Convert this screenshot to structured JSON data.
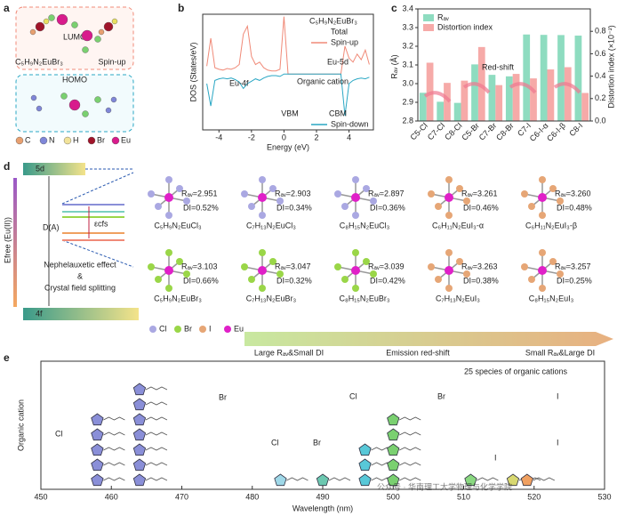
{
  "panel_labels": [
    "a",
    "b",
    "c",
    "d",
    "e"
  ],
  "panel_a": {
    "lumo": "LUMO",
    "formula": "C₅H₉N₂EuBr₃",
    "spin": "Spin-up",
    "homo": "HOMO",
    "legend": [
      {
        "name": "C",
        "color": "#e8a070"
      },
      {
        "name": "N",
        "color": "#7f86d8"
      },
      {
        "name": "H",
        "color": "#f2e39a"
      },
      {
        "name": "Br",
        "color": "#a0142a"
      },
      {
        "name": "Eu",
        "color": "#d81b8c"
      }
    ]
  },
  "panel_d": {
    "level_5d": "5d",
    "level_4f": "4f",
    "da": "D(A)",
    "cfs": "εcfs",
    "efree": "Efree (Eu(II))",
    "effect": [
      "Nephelauxetic effect",
      "&",
      "Crystal field splitting"
    ],
    "structures": [
      {
        "rav": "Rₐᵥ=2.951",
        "di": "DI=0.52%",
        "name": "C₅H₉N₂EuCl₃",
        "halide": 0
      },
      {
        "rav": "Rₐᵥ=2.903",
        "di": "DI=0.34%",
        "name": "C₇H₁₃N₂EuCl₃",
        "halide": 0
      },
      {
        "rav": "Rₐᵥ=2.897",
        "di": "DI=0.36%",
        "name": "C₈H₁₅N₂EuCl₃",
        "halide": 0
      },
      {
        "rav": "Rₐᵥ=3.261",
        "di": "DI=0.46%",
        "name": "C₆H₁₁N₂EuI₃-α",
        "halide": 2
      },
      {
        "rav": "Rₐᵥ=3.260",
        "di": "DI=0.48%",
        "name": "C₆H₁₁N₂EuI₃-β",
        "halide": 2
      },
      {
        "rav": "Rₐᵥ=3.103",
        "di": "DI=0.66%",
        "name": "C₅H₉N₂EuBr₃",
        "halide": 1
      },
      {
        "rav": "Rₐᵥ=3.047",
        "di": "DI=0.32%",
        "name": "C₇H₁₃N₂EuBr₃",
        "halide": 1
      },
      {
        "rav": "Rₐᵥ=3.039",
        "di": "DI=0.42%",
        "name": "C₈H₁₅N₂EuBr₃",
        "halide": 1
      },
      {
        "rav": "Rₐᵥ=3.263",
        "di": "DI=0.38%",
        "name": "C₇H₁₃N₂EuI₃",
        "halide": 2
      },
      {
        "rav": "Rₐᵥ=3.257",
        "di": "DI=0.25%",
        "name": "C₈H₁₅N₂EuI₃",
        "halide": 2
      }
    ],
    "legend": [
      {
        "name": "Cl",
        "color": "#aaa8e2"
      },
      {
        "name": "Br",
        "color": "#9ad648"
      },
      {
        "name": "I",
        "color": "#e6a676"
      },
      {
        "name": "Eu",
        "color": "#e020c8"
      }
    ],
    "arrow_texts": [
      "Large Rₐᵥ&Small DI",
      "Emission red-shift",
      "Small Rₐᵥ&Large DI"
    ]
  },
  "chart_data": [
    {
      "type": "line",
      "title": "C₅H₉N₂EuBr₃",
      "legend_title": "Total",
      "xlabel": "Energy (eV)",
      "ylabel": "DOS (States/eV)",
      "xlim": [
        -5,
        5.5
      ],
      "xticks": [
        -4,
        -2,
        0,
        2,
        4
      ],
      "ylim": [
        -70,
        75
      ],
      "annotations": [
        "Eu-4f",
        "Eu-5d",
        "Organic cation",
        "VBM",
        "CBM"
      ],
      "x": [
        -4.75,
        -4.5,
        -4.25,
        -4,
        -3.75,
        -3.5,
        -3.25,
        -3,
        -2.75,
        -2.5,
        -2.25,
        -2,
        -1.75,
        -1.5,
        -1.25,
        -1,
        -0.75,
        -0.5,
        -0.25,
        0,
        0.25,
        0.5,
        0.75,
        1,
        1.25,
        1.5,
        1.75,
        2,
        2.25,
        2.5,
        2.75,
        3,
        3.25,
        3.5,
        3.75,
        4,
        4.25,
        4.5,
        4.75,
        5,
        5.25
      ],
      "series": [
        {
          "name": "Spin-up",
          "color": "#f08a78",
          "values": [
            10,
            45,
            8,
            6,
            5,
            7,
            6,
            8,
            12,
            50,
            60,
            22,
            12,
            15,
            8,
            5,
            4,
            4,
            6,
            72,
            0,
            0,
            0,
            0,
            0,
            0,
            0,
            0,
            0,
            0,
            0,
            0,
            0,
            0,
            35,
            20,
            15,
            25,
            18,
            30,
            12
          ]
        },
        {
          "name": "Spin-down",
          "color": "#2aa7c4",
          "values": [
            -12,
            -40,
            -8,
            -6,
            -5,
            -6,
            -5,
            -7,
            -10,
            -18,
            -12,
            -9,
            -6,
            -8,
            -5,
            -3,
            -2,
            -2,
            -3,
            0,
            0,
            0,
            0,
            0,
            0,
            0,
            0,
            0,
            0,
            0,
            0,
            0,
            0,
            0,
            -52,
            -12,
            -8,
            -6,
            -5,
            -6,
            -4
          ]
        }
      ]
    },
    {
      "type": "bar",
      "ylabel": "Rₐᵥ (Å)",
      "y2label": "Distortion index (×10⁻²)",
      "annotation": "Red-shift",
      "categories": [
        "C5-Cl",
        "C7-Cl",
        "C8-Cl",
        "C5-Br",
        "C7-Br",
        "C8-Br",
        "C7-I",
        "C6-I-α",
        "C6-I-β",
        "C8-I"
      ],
      "ylim": [
        2.8,
        3.4
      ],
      "yticks": [
        2.8,
        2.9,
        {
          "value": 3.0,
          "label": "3.0"
        },
        3.1,
        3.2,
        3.3,
        3.4
      ],
      "y2lim": [
        0,
        1.0
      ],
      "y2ticks": [
        {
          "value": 0,
          "label": "0.0"
        },
        0.2,
        0.4,
        0.6,
        0.8
      ],
      "series": [
        {
          "name": "Rₐᵥ",
          "color": "#8edcc0",
          "values": [
            2.951,
            2.903,
            2.897,
            3.103,
            3.047,
            3.039,
            3.263,
            3.261,
            3.26,
            3.257
          ]
        },
        {
          "name": "Distortion index",
          "color": "#f6aaa8",
          "axis": "y2",
          "values": [
            0.52,
            0.34,
            0.36,
            0.66,
            0.32,
            0.42,
            0.38,
            0.46,
            0.48,
            0.25
          ]
        }
      ]
    },
    {
      "type": "scatter",
      "title": "25 species of organic cations",
      "xlabel": "Wavelength (nm)",
      "ylabel": "Organic cation",
      "xlim": [
        450,
        530
      ],
      "xticks": [
        450,
        460,
        470,
        480,
        490,
        500,
        510,
        520,
        530
      ],
      "halide_labels": [
        "Cl",
        "Br",
        "Cl",
        "Br",
        "Cl",
        "Br",
        "I",
        "I",
        "I"
      ],
      "watermark": "公众号 · 华南理工大学物理与化学学院",
      "series": [
        {
          "color": "#8a8fd8",
          "x": [
            458,
            458,
            458,
            458,
            458,
            464,
            464,
            464,
            464,
            464,
            464,
            464
          ]
        },
        {
          "color": "#9fd8e8",
          "x": [
            484
          ]
        },
        {
          "color": "#6cc8b0",
          "x": [
            490
          ]
        },
        {
          "color": "#58c8d8",
          "x": [
            496,
            496,
            496
          ]
        },
        {
          "color": "#7ad070",
          "x": [
            500,
            500,
            500,
            500,
            500
          ]
        },
        {
          "color": "#8ad880",
          "x": [
            511
          ]
        },
        {
          "color": "#d8d870",
          "x": [
            517
          ]
        },
        {
          "color": "#f0a060",
          "x": [
            519
          ]
        }
      ]
    }
  ]
}
